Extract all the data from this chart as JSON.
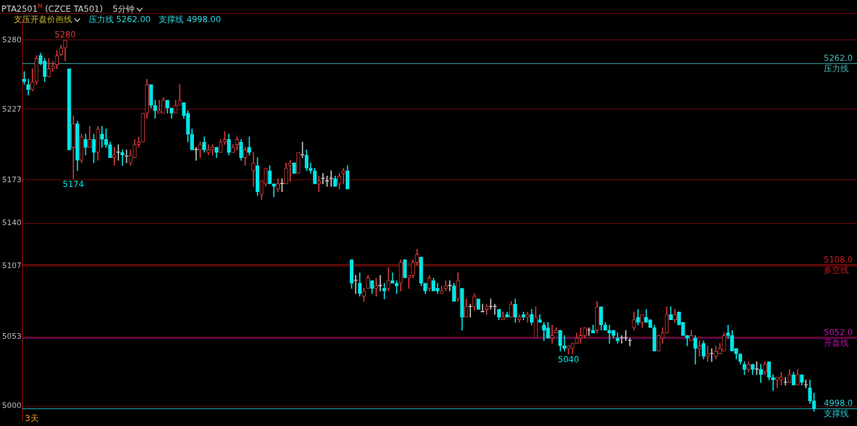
{
  "chart_data": {
    "type": "candlestick",
    "title": "PTA2501$^{M}$ (CZCE TA501)",
    "subtitle": "5分钟",
    "annotations": [
      "支压开盘价画线",
      "压力线 5262.00",
      "支撑线 4998.00",
      "3天",
      {
        "text": "5280",
        "y": 5280
      },
      {
        "text": "5174",
        "y": 5174
      },
      {
        "text": "5040",
        "y": 5040
      }
    ],
    "categories": [
      null,
      null,
      null,
      null,
      null,
      null,
      null,
      null,
      null,
      null,
      null,
      null,
      null,
      null,
      null,
      null,
      null,
      null,
      null,
      null,
      null,
      null,
      null,
      null,
      null,
      null,
      null,
      null,
      null,
      null,
      null,
      null,
      null,
      null,
      null,
      null,
      null,
      null,
      null,
      null,
      null,
      null,
      null,
      null,
      null,
      null,
      null,
      null,
      null,
      null,
      null,
      null,
      null,
      null,
      null,
      null,
      null,
      null,
      null,
      null,
      null,
      null,
      null,
      null,
      null,
      null,
      null,
      null,
      null,
      null,
      null,
      null,
      null,
      null,
      null,
      null,
      null,
      null,
      null,
      null,
      null,
      null,
      null,
      null,
      null,
      null,
      null,
      null,
      null,
      null,
      null,
      null,
      null,
      null,
      null,
      null,
      null,
      null,
      null,
      null,
      null,
      null,
      null,
      null,
      null,
      null,
      null,
      null,
      null,
      null,
      null,
      null,
      null,
      null,
      null,
      null,
      null,
      null,
      null,
      null,
      null,
      null,
      null,
      null,
      null,
      null,
      null,
      null,
      null,
      null,
      null,
      null,
      null,
      null,
      null,
      null,
      null,
      null,
      null,
      null,
      null,
      null,
      null,
      null,
      null,
      null,
      null,
      null,
      null,
      null,
      null,
      null,
      null,
      null,
      null,
      null,
      null,
      null,
      null,
      null,
      null,
      null,
      null,
      null,
      null,
      null,
      null,
      null,
      null,
      null,
      null,
      null,
      null,
      null,
      null,
      null,
      null,
      null,
      null,
      null,
      null,
      null,
      null,
      null,
      null,
      null,
      null,
      null,
      null,
      null,
      null,
      null,
      null,
      null,
      null,
      null,
      null,
      null,
      null,
      null,
      null,
      null,
      null,
      null
    ],
    "ohlc": [
      [
        5250,
        5256,
        5246,
        5248
      ],
      [
        5246,
        5250,
        5238,
        5242
      ],
      [
        5242,
        5258,
        5241,
        5248
      ],
      [
        5248,
        5268,
        5246,
        5266
      ],
      [
        5268,
        5270,
        5261,
        5262
      ],
      [
        5264,
        5266,
        5248,
        5252
      ],
      [
        5252,
        5266,
        5252,
        5258
      ],
      [
        5258,
        5264,
        5256,
        5260
      ],
      [
        5261,
        5272,
        5258,
        5268
      ],
      [
        5269,
        5276,
        5268,
        5274
      ],
      [
        5274,
        5280,
        5264,
        5280
      ],
      [
        5258,
        5258,
        5196,
        5196
      ],
      [
        5198,
        5222,
        5174,
        5216
      ],
      [
        5216,
        5218,
        5180,
        5188
      ],
      [
        5188,
        5208,
        5186,
        5206
      ],
      [
        5204,
        5208,
        5192,
        5198
      ],
      [
        5198,
        5214,
        5198,
        5204
      ],
      [
        5204,
        5208,
        5186,
        5194
      ],
      [
        5194,
        5214,
        5188,
        5212
      ],
      [
        5208,
        5214,
        5198,
        5204
      ],
      [
        5204,
        5212,
        5198,
        5200
      ],
      [
        5200,
        5202,
        5190,
        5190
      ],
      [
        5190,
        5198,
        5184,
        5192
      ],
      [
        5194,
        5200,
        5188,
        5194
      ],
      [
        5194,
        5196,
        5184,
        5192
      ],
      [
        5191,
        5196,
        5186,
        5191
      ],
      [
        5186,
        5196,
        5184,
        5192
      ],
      [
        5190,
        5204,
        5190,
        5200
      ],
      [
        5200,
        5206,
        5198,
        5202
      ],
      [
        5202,
        5224,
        5202,
        5224
      ],
      [
        5224,
        5250,
        5220,
        5246
      ],
      [
        5246,
        5246,
        5228,
        5230
      ],
      [
        5230,
        5234,
        5220,
        5226
      ],
      [
        5224,
        5234,
        5224,
        5226
      ],
      [
        5224,
        5236,
        5224,
        5234
      ],
      [
        5234,
        5234,
        5224,
        5228
      ],
      [
        5228,
        5228,
        5220,
        5224
      ],
      [
        5224,
        5234,
        5224,
        5230
      ],
      [
        5230,
        5246,
        5230,
        5234
      ],
      [
        5232,
        5232,
        5220,
        5222
      ],
      [
        5224,
        5226,
        5202,
        5208
      ],
      [
        5208,
        5212,
        5196,
        5196
      ],
      [
        5196,
        5198,
        5188,
        5196
      ],
      [
        5196,
        5202,
        5190,
        5200
      ],
      [
        5202,
        5206,
        5194,
        5196
      ],
      [
        5194,
        5200,
        5192,
        5196
      ],
      [
        5196,
        5200,
        5192,
        5198
      ],
      [
        5198,
        5198,
        5190,
        5194
      ],
      [
        5194,
        5204,
        5194,
        5202
      ],
      [
        5202,
        5210,
        5200,
        5204
      ],
      [
        5204,
        5208,
        5192,
        5194
      ],
      [
        5194,
        5200,
        5194,
        5198
      ],
      [
        5200,
        5206,
        5196,
        5204
      ],
      [
        5202,
        5204,
        5188,
        5190
      ],
      [
        5190,
        5198,
        5184,
        5196
      ],
      [
        5198,
        5206,
        5192,
        5194
      ],
      [
        5180,
        5194,
        5168,
        5186
      ],
      [
        5184,
        5190,
        5161,
        5164
      ],
      [
        5162,
        5172,
        5158,
        5172
      ],
      [
        5170,
        5182,
        5168,
        5182
      ],
      [
        5180,
        5184,
        5170,
        5170
      ],
      [
        5170,
        5170,
        5160,
        5168
      ],
      [
        5166,
        5174,
        5164,
        5170
      ],
      [
        5170,
        5174,
        5164,
        5170
      ],
      [
        5170,
        5186,
        5170,
        5182
      ],
      [
        5184,
        5188,
        5172,
        5186
      ],
      [
        5186,
        5186,
        5178,
        5178
      ],
      [
        5178,
        5194,
        5178,
        5194
      ],
      [
        5192,
        5202,
        5190,
        5192
      ],
      [
        5192,
        5196,
        5180,
        5182
      ],
      [
        5182,
        5186,
        5178,
        5180
      ],
      [
        5180,
        5182,
        5170,
        5170
      ],
      [
        5170,
        5176,
        5164,
        5172
      ],
      [
        5174,
        5178,
        5170,
        5174
      ],
      [
        5172,
        5176,
        5168,
        5172
      ],
      [
        5174,
        5180,
        5168,
        5174
      ],
      [
        5174,
        5176,
        5168,
        5168
      ],
      [
        5170,
        5178,
        5166,
        5176
      ],
      [
        5178,
        5182,
        5170,
        5180
      ],
      [
        5180,
        5184,
        5166,
        5166
      ],
      [
        5112,
        5112,
        5090,
        5094
      ],
      [
        5096,
        5100,
        5086,
        5096
      ],
      [
        5094,
        5102,
        5084,
        5086
      ],
      [
        5084,
        5090,
        5080,
        5088
      ],
      [
        5090,
        5100,
        5090,
        5098
      ],
      [
        5096,
        5096,
        5086,
        5090
      ],
      [
        5090,
        5098,
        5084,
        5092
      ],
      [
        5092,
        5100,
        5088,
        5092
      ],
      [
        5090,
        5094,
        5082,
        5088
      ],
      [
        5090,
        5106,
        5088,
        5096
      ],
      [
        5096,
        5102,
        5094,
        5094
      ],
      [
        5094,
        5096,
        5086,
        5092
      ],
      [
        5094,
        5112,
        5088,
        5110
      ],
      [
        5112,
        5112,
        5098,
        5098
      ],
      [
        5098,
        5100,
        5090,
        5100
      ],
      [
        5100,
        5112,
        5098,
        5110
      ],
      [
        5110,
        5120,
        5108,
        5116
      ],
      [
        5114,
        5114,
        5092,
        5094
      ],
      [
        5094,
        5094,
        5086,
        5088
      ],
      [
        5090,
        5100,
        5088,
        5098
      ],
      [
        5096,
        5098,
        5088,
        5088
      ],
      [
        5090,
        5094,
        5086,
        5088
      ],
      [
        5086,
        5092,
        5086,
        5088
      ],
      [
        5090,
        5096,
        5088,
        5092
      ],
      [
        5092,
        5096,
        5088,
        5092
      ],
      [
        5092,
        5094,
        5080,
        5080
      ],
      [
        5082,
        5102,
        5080,
        5096
      ],
      [
        5090,
        5090,
        5058,
        5068
      ],
      [
        5068,
        5082,
        5068,
        5076
      ],
      [
        5076,
        5078,
        5068,
        5076
      ],
      [
        5076,
        5086,
        5073,
        5084
      ],
      [
        5082,
        5082,
        5074,
        5074
      ],
      [
        5072,
        5078,
        5072,
        5072
      ],
      [
        5074,
        5078,
        5070,
        5076
      ],
      [
        5076,
        5082,
        5074,
        5076
      ],
      [
        5076,
        5078,
        5070,
        5076
      ],
      [
        5074,
        5074,
        5066,
        5068
      ],
      [
        5066,
        5072,
        5066,
        5068
      ],
      [
        5070,
        5072,
        5068,
        5068
      ],
      [
        5068,
        5080,
        5068,
        5078
      ],
      [
        5078,
        5082,
        5064,
        5068
      ],
      [
        5066,
        5070,
        5064,
        5068
      ],
      [
        5070,
        5072,
        5066,
        5068
      ],
      [
        5068,
        5072,
        5064,
        5070
      ],
      [
        5070,
        5074,
        5062,
        5064
      ],
      [
        5052,
        5076,
        5052,
        5068
      ],
      [
        5066,
        5070,
        5064,
        5064
      ],
      [
        5062,
        5064,
        5050,
        5058
      ],
      [
        5060,
        5064,
        5052,
        5052
      ],
      [
        5052,
        5062,
        5048,
        5054
      ],
      [
        5056,
        5060,
        5056,
        5058
      ],
      [
        5058,
        5058,
        5042,
        5046
      ],
      [
        5046,
        5054,
        5042,
        5044
      ],
      [
        5044,
        5046,
        5040,
        5046
      ],
      [
        5044,
        5048,
        5040,
        5048
      ],
      [
        5048,
        5056,
        5048,
        5052
      ],
      [
        5052,
        5060,
        5048,
        5054
      ],
      [
        5054,
        5060,
        5052,
        5060
      ],
      [
        5058,
        5060,
        5054,
        5058
      ],
      [
        5058,
        5062,
        5056,
        5056
      ],
      [
        5058,
        5080,
        5056,
        5076
      ],
      [
        5076,
        5076,
        5058,
        5062
      ],
      [
        5062,
        5064,
        5058,
        5058
      ],
      [
        5058,
        5062,
        5048,
        5056
      ],
      [
        5058,
        5058,
        5052,
        5054
      ],
      [
        5052,
        5056,
        5048,
        5050
      ],
      [
        5052,
        5054,
        5048,
        5052
      ],
      [
        5052,
        5058,
        5050,
        5052
      ],
      [
        5050,
        5052,
        5046,
        5050
      ],
      [
        5060,
        5072,
        5058,
        5066
      ],
      [
        5068,
        5074,
        5062,
        5064
      ],
      [
        5064,
        5070,
        5060,
        5070
      ],
      [
        5068,
        5074,
        5064,
        5064
      ],
      [
        5066,
        5066,
        5060,
        5060
      ],
      [
        5060,
        5062,
        5042,
        5042
      ],
      [
        5042,
        5054,
        5042,
        5054
      ],
      [
        5052,
        5060,
        5048,
        5056
      ],
      [
        5056,
        5076,
        5056,
        5070
      ],
      [
        5070,
        5076,
        5066,
        5066
      ],
      [
        5066,
        5074,
        5064,
        5070
      ],
      [
        5072,
        5072,
        5062,
        5062
      ],
      [
        5064,
        5064,
        5054,
        5054
      ],
      [
        5054,
        5054,
        5046,
        5052
      ],
      [
        5050,
        5058,
        5050,
        5054
      ],
      [
        5052,
        5054,
        5032,
        5044
      ],
      [
        5044,
        5050,
        5038,
        5046
      ],
      [
        5048,
        5050,
        5036,
        5038
      ],
      [
        5038,
        5046,
        5034,
        5040
      ],
      [
        5040,
        5044,
        5034,
        5040
      ],
      [
        5038,
        5046,
        5036,
        5042
      ],
      [
        5040,
        5048,
        5040,
        5044
      ],
      [
        5042,
        5056,
        5042,
        5054
      ],
      [
        5056,
        5062,
        5052,
        5054
      ],
      [
        5054,
        5058,
        5042,
        5042
      ],
      [
        5044,
        5044,
        5036,
        5040
      ],
      [
        5040,
        5040,
        5032,
        5034
      ],
      [
        5032,
        5034,
        5024,
        5028
      ],
      [
        5028,
        5034,
        5026,
        5032
      ],
      [
        5032,
        5032,
        5024,
        5028
      ],
      [
        5028,
        5034,
        5024,
        5028
      ],
      [
        5028,
        5032,
        5018,
        5024
      ],
      [
        5026,
        5034,
        5024,
        5032
      ],
      [
        5034,
        5034,
        5020,
        5022
      ],
      [
        5022,
        5024,
        5012,
        5020
      ],
      [
        5020,
        5022,
        5014,
        5022
      ],
      [
        5020,
        5026,
        5016,
        5022
      ],
      [
        5018,
        5022,
        5016,
        5018
      ],
      [
        5018,
        5028,
        5018,
        5024
      ],
      [
        5024,
        5026,
        5016,
        5016
      ],
      [
        5016,
        5028,
        5016,
        5024
      ],
      [
        5024,
        5024,
        5016,
        5018
      ],
      [
        5016,
        5020,
        5014,
        5016
      ],
      [
        5014,
        5020,
        5002,
        5004
      ],
      [
        5004,
        5010,
        4996,
        4998
      ],
      null,
      null,
      null,
      null,
      null,
      null,
      null,
      null,
      null,
      null
    ],
    "ylim": [
      4989,
      5296
    ],
    "yticks": [
      5280,
      5227,
      5173,
      5140,
      5107,
      5053,
      5000
    ],
    "grid": "y",
    "legend": false,
    "tick_labels": "y",
    "ref_lines": [
      {
        "axis": "y",
        "value": 5262,
        "label": "5262.0\n压力线",
        "color": "#4ab8b8"
      },
      {
        "axis": "y",
        "value": 5108,
        "label": "5108.0\n多空线",
        "color": "#d01818"
      },
      {
        "axis": "y",
        "value": 5052,
        "label": "5052.0\n开盘线",
        "color": "#c010b0"
      },
      {
        "axis": "y",
        "value": 4998,
        "label": "4998.0\n支撑线",
        "color": "#20c8d0"
      }
    ]
  }
}
